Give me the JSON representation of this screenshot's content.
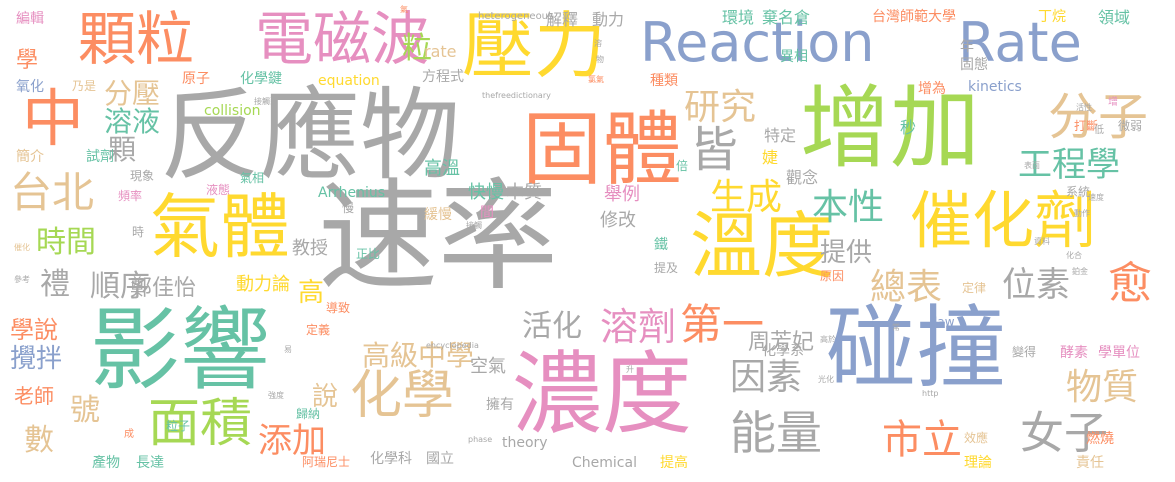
{
  "word_cloud": {
    "colors": [
      "#a8a8a8",
      "#e68fc0",
      "#8aa0cc",
      "#fc8d62",
      "#66c2a5",
      "#a6d854",
      "#ffd92f",
      "#e5c494"
    ],
    "words": [
      "速率",
      "反應物",
      "影響",
      "濃度",
      "碰撞",
      "增加",
      "壓力",
      "固體",
      "氣體",
      "溫度",
      "催化劑",
      "顆粒",
      "電磁波",
      "Reaction",
      "Rate",
      "中",
      "分子",
      "化學",
      "面積",
      "能量",
      "女子",
      "市立",
      "高級中學",
      "台北",
      "工程學",
      "本性",
      "生成",
      "愈",
      "皆",
      "物質",
      "第一",
      "溶劑",
      "因素",
      "總表",
      "研究",
      "位素",
      "時間",
      "順序",
      "活化",
      "添加",
      "號",
      "說",
      "數",
      "攪拌",
      "學說",
      "禮",
      "老師",
      "溶液",
      "分壓",
      "顆",
      "粒",
      "提供",
      "周芳妃",
      "鄭佳怡",
      "高",
      "動力論",
      "教授",
      "空氣",
      "快慢",
      "本質",
      "高溫",
      "修改",
      "舉例",
      "特定",
      "觀念",
      "秒",
      "婕",
      "棄名倉",
      "台灣師範大學",
      "丁烷",
      "環境",
      "領域",
      "年",
      "固態",
      "增為",
      "異相",
      "動力",
      "解釋",
      "原子",
      "化學鍵",
      "方程式",
      "equation",
      "collision",
      "kinetics",
      "heterogeneous",
      "rate",
      "law",
      "theory",
      "Chemical",
      "phase",
      "encyclopedia",
      "Arrhenius",
      "化學系",
      "化學科",
      "國立",
      "提高",
      "阿瑞尼士",
      "產物",
      "長達",
      "理論",
      "責任",
      "燃燒",
      "效應",
      "變得",
      "酵素",
      "學單位",
      "打斷",
      "微弱",
      "系統",
      "歸納",
      "導致",
      "定義",
      "緩慢",
      "擁有",
      "粒子",
      "簡介",
      "試劑",
      "現象",
      "頻率",
      "氣相",
      "液態",
      "間",
      "鐵",
      "編輯",
      "乃是",
      "氧化",
      "種類",
      "提及",
      "原因",
      "定律",
      "學",
      "倍",
      "氣",
      "正比",
      "接觸到",
      "thefreedictionary",
      "氯氣",
      "催化",
      "參考",
      "資料",
      "動作",
      "表面",
      "化合",
      "鉑金",
      "高於",
      "光化",
      "http",
      "活性",
      "增",
      "慢",
      "時",
      "成",
      "強度",
      "速度",
      "低",
      "溶",
      "物",
      "常",
      "易",
      "升",
      "接觸"
    ]
  }
}
